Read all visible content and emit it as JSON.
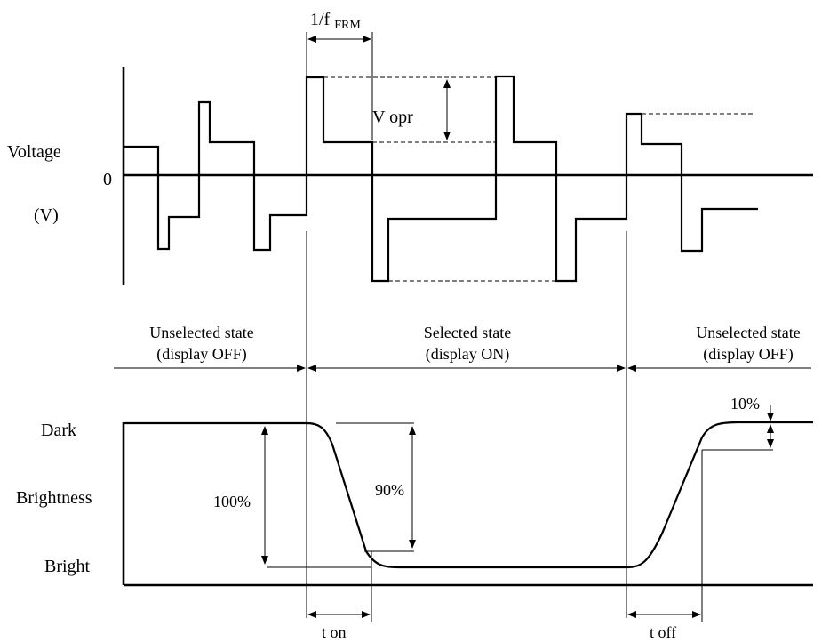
{
  "voltage_axis": {
    "title": "Voltage",
    "zero": "0",
    "unit": "(V)"
  },
  "frame_period_label": {
    "prefix": "1/f",
    "subscript": "FRM"
  },
  "v_opr_label": "V opr",
  "states": [
    {
      "name": "Unselected state",
      "detail": "(display OFF)"
    },
    {
      "name": "Selected state",
      "detail": "(display ON)"
    },
    {
      "name": "Unselected state",
      "detail": "(display OFF)"
    }
  ],
  "brightness_axis": {
    "top": "Dark",
    "title": "Brightness",
    "bottom": "Bright"
  },
  "percent_labels": {
    "full": "100%",
    "ninety": "90%",
    "ten": "10%"
  },
  "times": {
    "on": "t on",
    "off": "t off"
  }
}
